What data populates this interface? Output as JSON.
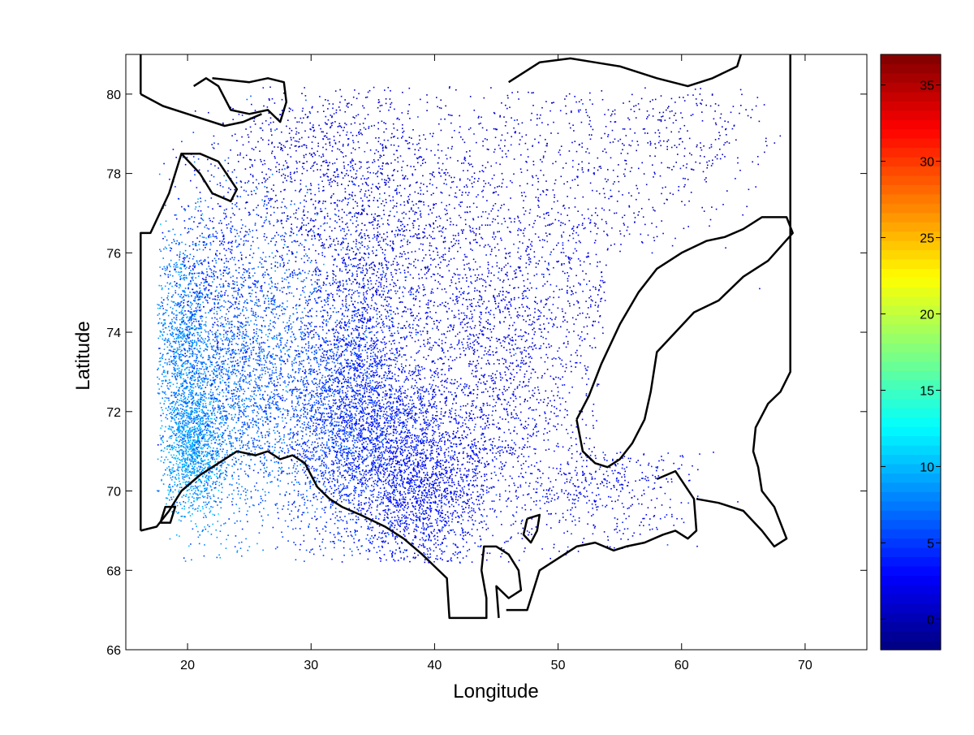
{
  "figure": {
    "xlabel": "Longitude",
    "ylabel": "Latitude"
  },
  "chart_data": {
    "type": "scatter",
    "xlabel": "Longitude",
    "ylabel": "Latitude",
    "xlim": [
      15,
      75
    ],
    "ylim": [
      66,
      81
    ],
    "xticks": [
      "20",
      "30",
      "40",
      "50",
      "60",
      "70"
    ],
    "yticks": [
      "66",
      "68",
      "70",
      "72",
      "74",
      "76",
      "78",
      "80"
    ],
    "colorbar": {
      "colormap": "jet",
      "clim": [
        -2,
        37
      ],
      "ticks": [
        "0",
        "5",
        "10",
        "15",
        "20",
        "25",
        "30",
        "35"
      ]
    },
    "clusters": [
      {
        "lon": 19.5,
        "lat": 73.5,
        "sx": 1.2,
        "sy": 1.5,
        "n": 1100,
        "value": 8
      },
      {
        "lon": 20.5,
        "lat": 71.0,
        "sx": 1.2,
        "sy": 0.8,
        "n": 1000,
        "value": 9
      },
      {
        "lon": 23.0,
        "lat": 72.5,
        "sx": 2.5,
        "sy": 1.6,
        "n": 1300,
        "value": 7
      },
      {
        "lon": 27.0,
        "lat": 73.5,
        "sx": 3.0,
        "sy": 2.0,
        "n": 1400,
        "value": 6
      },
      {
        "lon": 32.0,
        "lat": 71.5,
        "sx": 2.5,
        "sy": 1.5,
        "n": 1500,
        "value": 5
      },
      {
        "lon": 34.0,
        "lat": 73.5,
        "sx": 2.0,
        "sy": 2.0,
        "n": 1200,
        "value": 4
      },
      {
        "lon": 37.0,
        "lat": 71.0,
        "sx": 2.5,
        "sy": 1.4,
        "n": 1400,
        "value": 3.5
      },
      {
        "lon": 40.0,
        "lat": 70.0,
        "sx": 2.5,
        "sy": 1.1,
        "n": 1100,
        "value": 3
      },
      {
        "lon": 45.0,
        "lat": 72.0,
        "sx": 3.5,
        "sy": 1.8,
        "n": 1000,
        "value": 2.5
      },
      {
        "lon": 43.0,
        "lat": 74.5,
        "sx": 5.0,
        "sy": 1.5,
        "n": 900,
        "value": 2
      },
      {
        "lon": 35.0,
        "lat": 76.5,
        "sx": 5.0,
        "sy": 1.5,
        "n": 900,
        "value": 1.5
      },
      {
        "lon": 30.0,
        "lat": 78.5,
        "sx": 4.0,
        "sy": 1.2,
        "n": 600,
        "value": 1
      },
      {
        "lon": 45.0,
        "lat": 78.5,
        "sx": 8.0,
        "sy": 1.5,
        "n": 700,
        "value": 1
      },
      {
        "lon": 52.0,
        "lat": 75.5,
        "sx": 3.0,
        "sy": 1.5,
        "n": 400,
        "value": 1.5
      },
      {
        "lon": 60.0,
        "lat": 79.0,
        "sx": 4.0,
        "sy": 1.0,
        "n": 300,
        "value": 0.5
      },
      {
        "lon": 54.0,
        "lat": 70.2,
        "sx": 3.5,
        "sy": 0.8,
        "n": 450,
        "value": 2.5
      },
      {
        "lon": 22.0,
        "lat": 75.5,
        "sx": 2.0,
        "sy": 1.3,
        "n": 500,
        "value": 4
      }
    ],
    "coastlines": [
      [
        [
          16.2,
          80.0
        ],
        [
          16.2,
          81.0
        ]
      ],
      [
        [
          16.2,
          80.0
        ],
        [
          18.0,
          79.7
        ],
        [
          20.0,
          79.5
        ],
        [
          23.0,
          79.2
        ],
        [
          24.5,
          79.3
        ],
        [
          26.0,
          79.5
        ]
      ],
      [
        [
          16.2,
          69.0
        ],
        [
          16.2,
          76.5
        ],
        [
          17.0,
          76.5
        ],
        [
          18.5,
          77.5
        ],
        [
          19.5,
          78.5
        ],
        [
          21.0,
          78.0
        ],
        [
          22.0,
          77.5
        ],
        [
          23.5,
          77.3
        ],
        [
          24.0,
          77.6
        ],
        [
          22.5,
          78.3
        ],
        [
          21.0,
          78.5
        ],
        [
          19.5,
          78.5
        ]
      ],
      [
        [
          16.2,
          69.0
        ],
        [
          17.5,
          69.1
        ],
        [
          18.5,
          69.5
        ],
        [
          19.5,
          70.0
        ],
        [
          21.0,
          70.4
        ],
        [
          22.5,
          70.7
        ],
        [
          24.0,
          71.0
        ],
        [
          25.5,
          70.9
        ],
        [
          26.5,
          71.0
        ],
        [
          27.5,
          70.8
        ],
        [
          28.5,
          70.9
        ],
        [
          29.5,
          70.7
        ],
        [
          30.5,
          70.1
        ],
        [
          31.5,
          69.8
        ],
        [
          32.5,
          69.6
        ],
        [
          34.0,
          69.4
        ],
        [
          36.0,
          69.1
        ],
        [
          37.5,
          68.8
        ],
        [
          39.0,
          68.4
        ],
        [
          40.0,
          68.1
        ],
        [
          41.0,
          67.8
        ],
        [
          41.2,
          66.8
        ],
        [
          44.2,
          66.8
        ],
        [
          44.2,
          67.3
        ],
        [
          43.8,
          68.0
        ],
        [
          44.0,
          68.6
        ],
        [
          45.0,
          68.6
        ],
        [
          46.0,
          68.4
        ],
        [
          46.8,
          68.0
        ],
        [
          47.0,
          67.5
        ],
        [
          46.0,
          67.3
        ],
        [
          45.0,
          67.6
        ],
        [
          45.2,
          66.8
        ]
      ],
      [
        [
          45.8,
          67.0
        ],
        [
          47.5,
          67.0
        ],
        [
          48.0,
          67.5
        ],
        [
          48.5,
          68.0
        ],
        [
          50.0,
          68.3
        ],
        [
          51.5,
          68.6
        ],
        [
          53.0,
          68.7
        ],
        [
          54.5,
          68.5
        ],
        [
          55.5,
          68.6
        ],
        [
          57.0,
          68.7
        ],
        [
          58.5,
          68.9
        ],
        [
          59.5,
          69.0
        ],
        [
          60.5,
          68.8
        ],
        [
          61.2,
          69.0
        ],
        [
          61.0,
          69.8
        ],
        [
          59.5,
          70.5
        ],
        [
          58.0,
          70.3
        ]
      ],
      [
        [
          61.2,
          69.8
        ],
        [
          63.0,
          69.7
        ],
        [
          65.0,
          69.5
        ],
        [
          66.5,
          69.0
        ],
        [
          67.5,
          68.6
        ],
        [
          68.5,
          68.8
        ],
        [
          67.5,
          69.6
        ],
        [
          66.5,
          70.0
        ],
        [
          66.2,
          70.6
        ],
        [
          65.8,
          71.0
        ],
        [
          66.0,
          71.6
        ],
        [
          67.0,
          72.2
        ],
        [
          68.0,
          72.5
        ],
        [
          68.8,
          73.0
        ],
        [
          68.8,
          81.0
        ]
      ],
      [
        [
          51.5,
          71.8
        ],
        [
          52.5,
          72.4
        ],
        [
          53.5,
          73.2
        ],
        [
          55.0,
          74.2
        ],
        [
          56.5,
          75.0
        ],
        [
          58.0,
          75.6
        ],
        [
          60.0,
          76.0
        ],
        [
          62.0,
          76.3
        ],
        [
          63.5,
          76.4
        ],
        [
          65.0,
          76.6
        ],
        [
          66.5,
          76.9
        ],
        [
          68.5,
          76.9
        ],
        [
          69.0,
          76.5
        ],
        [
          67.0,
          75.8
        ],
        [
          65.0,
          75.4
        ],
        [
          63.0,
          74.8
        ],
        [
          61.0,
          74.5
        ],
        [
          59.5,
          74.0
        ],
        [
          58.0,
          73.5
        ],
        [
          57.5,
          72.5
        ],
        [
          57.0,
          71.8
        ],
        [
          56.0,
          71.2
        ],
        [
          55.0,
          70.8
        ],
        [
          54.0,
          70.6
        ],
        [
          53.0,
          70.7
        ],
        [
          52.0,
          71.0
        ],
        [
          51.5,
          71.8
        ]
      ],
      [
        [
          46.0,
          80.3
        ],
        [
          48.5,
          80.8
        ],
        [
          51.0,
          80.9
        ],
        [
          53.0,
          80.8
        ],
        [
          55.0,
          80.7
        ],
        [
          58.0,
          80.4
        ],
        [
          60.5,
          80.2
        ],
        [
          62.5,
          80.4
        ],
        [
          64.5,
          80.7
        ],
        [
          64.8,
          81.0
        ]
      ],
      [
        [
          20.5,
          80.2
        ],
        [
          21.5,
          80.4
        ],
        [
          22.5,
          80.2
        ],
        [
          23.5,
          79.6
        ],
        [
          25.0,
          79.5
        ],
        [
          26.5,
          79.6
        ],
        [
          27.5,
          79.3
        ],
        [
          28.0,
          79.8
        ],
        [
          27.8,
          80.3
        ],
        [
          26.5,
          80.4
        ],
        [
          25.0,
          80.3
        ],
        [
          22.0,
          80.4
        ]
      ],
      [
        [
          47.5,
          69.3
        ],
        [
          48.5,
          69.4
        ],
        [
          48.3,
          69.0
        ],
        [
          47.8,
          68.7
        ],
        [
          47.2,
          68.9
        ],
        [
          47.5,
          69.3
        ]
      ],
      [
        [
          17.8,
          69.2
        ],
        [
          18.2,
          69.6
        ],
        [
          19.0,
          69.6
        ],
        [
          18.6,
          69.2
        ],
        [
          17.8,
          69.2
        ]
      ]
    ]
  }
}
